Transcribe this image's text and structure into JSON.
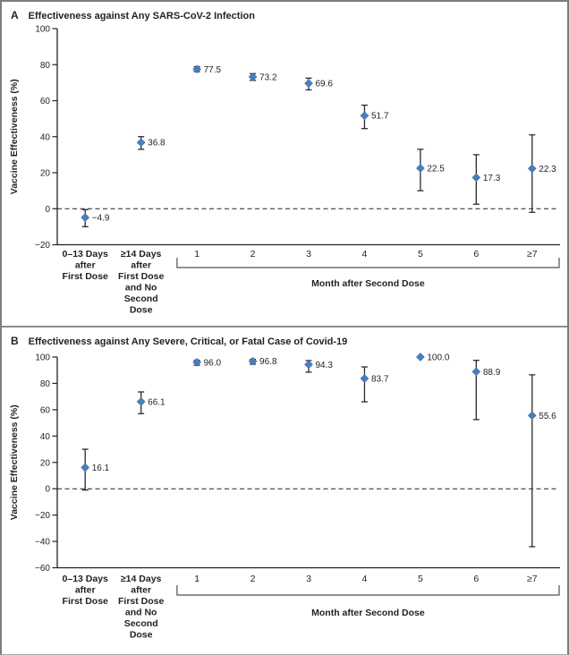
{
  "figure": {
    "colors": {
      "marker": "#4a7ebc",
      "marker_edge": "#3c6ca8",
      "error_bar": "#2b2b2b",
      "axis": "#231f20",
      "bracket": "#4f4f4f",
      "text": "#231f20",
      "border": "#7d7d7d"
    }
  },
  "chart_data": [
    {
      "type": "scatter",
      "panel": "A",
      "title": "Effectiveness against Any SARS-CoV-2 Infection",
      "ylabel": "Vaccine Effectiveness (%)",
      "ylim": [
        -20,
        100
      ],
      "ytick_values": [
        100,
        80,
        60,
        40,
        20,
        0,
        -20
      ],
      "ytick_labels": [
        "100",
        "80",
        "60",
        "40",
        "20",
        "0",
        "−20"
      ],
      "zero_reference_line": 0,
      "grid": false,
      "categories": [
        {
          "lines": [
            "0–13 Days",
            "after",
            "First Dose"
          ],
          "bold": true
        },
        {
          "lines": [
            "≥14 Days",
            "after",
            "First Dose",
            "and No",
            "Second",
            "Dose"
          ],
          "bold": true
        },
        {
          "lines": [
            "1"
          ],
          "bold": false
        },
        {
          "lines": [
            "2"
          ],
          "bold": false
        },
        {
          "lines": [
            "3"
          ],
          "bold": false
        },
        {
          "lines": [
            "4"
          ],
          "bold": false
        },
        {
          "lines": [
            "5"
          ],
          "bold": false
        },
        {
          "lines": [
            "6"
          ],
          "bold": false
        },
        {
          "lines": [
            "≥7"
          ],
          "bold": false
        }
      ],
      "month_bracket": {
        "from_index": 2,
        "to_index": 8,
        "label": "Month after Second Dose"
      },
      "points": [
        {
          "category": "0–13 Days after First Dose",
          "value": -4.9,
          "label": "−4.9",
          "ci": [
            -10.0,
            -0.5
          ]
        },
        {
          "category": "≥14 Days after First Dose and No Second Dose",
          "value": 36.8,
          "label": "36.8",
          "ci": [
            33.0,
            40.0
          ]
        },
        {
          "category": "1",
          "value": 77.5,
          "label": "77.5",
          "ci": [
            76.1,
            78.9
          ]
        },
        {
          "category": "2",
          "value": 73.2,
          "label": "73.2",
          "ci": [
            71.3,
            75.0
          ]
        },
        {
          "category": "3",
          "value": 69.6,
          "label": "69.6",
          "ci": [
            66.0,
            72.5
          ]
        },
        {
          "category": "4",
          "value": 51.7,
          "label": "51.7",
          "ci": [
            44.5,
            57.5
          ]
        },
        {
          "category": "5",
          "value": 22.5,
          "label": "22.5",
          "ci": [
            10.0,
            33.0
          ]
        },
        {
          "category": "6",
          "value": 17.3,
          "label": "17.3",
          "ci": [
            2.5,
            30.0
          ]
        },
        {
          "category": "≥7",
          "value": 22.3,
          "label": "22.3",
          "ci": [
            -2.0,
            41.0
          ]
        }
      ]
    },
    {
      "type": "scatter",
      "panel": "B",
      "title": "Effectiveness against Any Severe, Critical, or Fatal Case of Covid-19",
      "ylabel": "Vaccine Effectiveness (%)",
      "ylim": [
        -60,
        100
      ],
      "ytick_values": [
        100,
        80,
        60,
        40,
        20,
        0,
        -20,
        -40,
        -60
      ],
      "ytick_labels": [
        "100",
        "80",
        "60",
        "40",
        "20",
        "0",
        "−20",
        "−40",
        "−60"
      ],
      "zero_reference_line": 0,
      "grid": false,
      "categories": [
        {
          "lines": [
            "0–13 Days",
            "after",
            "First Dose"
          ],
          "bold": true
        },
        {
          "lines": [
            "≥14 Days",
            "after",
            "First Dose",
            "and No",
            "Second",
            "Dose"
          ],
          "bold": true
        },
        {
          "lines": [
            "1"
          ],
          "bold": false
        },
        {
          "lines": [
            "2"
          ],
          "bold": false
        },
        {
          "lines": [
            "3"
          ],
          "bold": false
        },
        {
          "lines": [
            "4"
          ],
          "bold": false
        },
        {
          "lines": [
            "5"
          ],
          "bold": false
        },
        {
          "lines": [
            "6"
          ],
          "bold": false
        },
        {
          "lines": [
            "≥7"
          ],
          "bold": false
        }
      ],
      "month_bracket": {
        "from_index": 2,
        "to_index": 8,
        "label": "Month after Second Dose"
      },
      "points": [
        {
          "category": "0–13 Days after First Dose",
          "value": 16.1,
          "label": "16.1",
          "ci": [
            -1.0,
            30.0
          ]
        },
        {
          "category": "≥14 Days after First Dose and No Second Dose",
          "value": 66.1,
          "label": "66.1",
          "ci": [
            57.0,
            73.5
          ]
        },
        {
          "category": "1",
          "value": 96.0,
          "label": "96.0",
          "ci": [
            93.8,
            97.6
          ]
        },
        {
          "category": "2",
          "value": 96.8,
          "label": "96.8",
          "ci": [
            94.6,
            98.3
          ]
        },
        {
          "category": "3",
          "value": 94.3,
          "label": "94.3",
          "ci": [
            88.5,
            97.3
          ]
        },
        {
          "category": "4",
          "value": 83.7,
          "label": "83.7",
          "ci": [
            66.0,
            92.5
          ]
        },
        {
          "category": "5",
          "value": 100.0,
          "label": "100.0",
          "ci": null
        },
        {
          "category": "6",
          "value": 88.9,
          "label": "88.9",
          "ci": [
            52.5,
            97.5
          ]
        },
        {
          "category": "≥7",
          "value": 55.6,
          "label": "55.6",
          "ci": [
            -44.0,
            86.5
          ]
        }
      ]
    }
  ]
}
